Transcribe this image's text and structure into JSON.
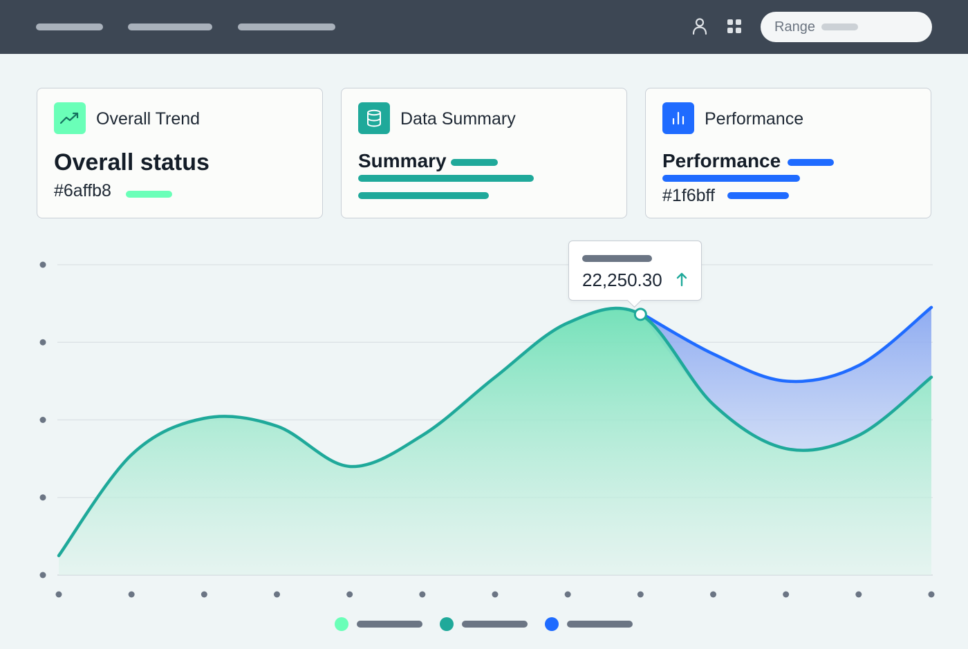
{
  "topbar": {
    "nav_items": [
      "",
      "",
      ""
    ],
    "icons": [
      "user-icon",
      "grid-icon"
    ],
    "range_label": "Range"
  },
  "cards": [
    {
      "title": "Overall Trend",
      "icon": "trend-up-icon",
      "headline": "Overall status",
      "hex": "#6affb8",
      "accent": "#6affb8"
    },
    {
      "title": "Data Summary",
      "icon": "database-icon",
      "headline": "Summary",
      "accent": "#1fa99a"
    },
    {
      "title": "Performance",
      "icon": "bar-chart-icon",
      "headline": "Performance",
      "hex": "#1f6bff",
      "accent": "#1f6bff"
    }
  ],
  "colors": {
    "mint": "#6affb8",
    "teal": "#1fa99a",
    "blue": "#1f6bff",
    "topbar": "#3d4754"
  },
  "tooltip": {
    "value": "22,250.30",
    "trend": "up"
  },
  "chart_data": {
    "type": "area",
    "x": [
      0,
      1,
      2,
      3,
      4,
      5,
      6,
      7,
      8,
      9,
      10,
      11,
      12
    ],
    "ylim": [
      0,
      4
    ],
    "y_ticks": 5,
    "x_ticks": 13,
    "grid": true,
    "series": [
      {
        "color": "#1fa99a",
        "values": [
          0.25,
          1.55,
          2.02,
          1.92,
          1.4,
          1.8,
          2.55,
          3.25,
          3.36,
          2.2,
          1.63,
          1.8,
          2.55
        ]
      },
      {
        "color": "#1f6bff",
        "values": [
          null,
          null,
          null,
          null,
          null,
          null,
          null,
          null,
          3.38,
          2.85,
          2.5,
          2.7,
          3.45
        ]
      }
    ],
    "highlight": {
      "x": 8,
      "series": 0,
      "label": "22,250.30"
    },
    "legend": {
      "position": "bottom",
      "colors": [
        "#6affb8",
        "#1fa99a",
        "#1f6bff"
      ]
    }
  }
}
